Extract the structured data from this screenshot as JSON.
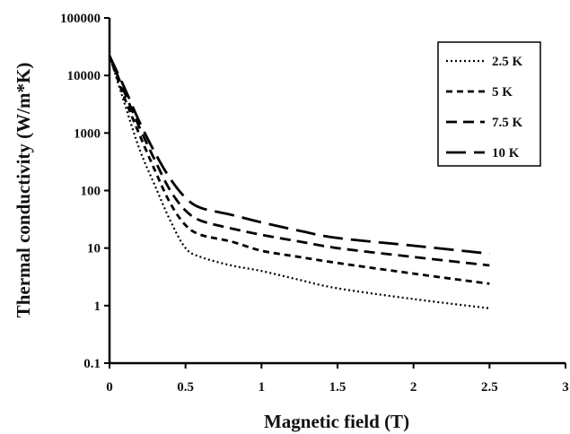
{
  "chart_data": {
    "type": "line",
    "title": "",
    "xlabel": "Magnetic field (T)",
    "ylabel": "Thermal conductivity (W/m*K)",
    "xlim": [
      0,
      3
    ],
    "ylim": [
      0.1,
      100000
    ],
    "yscale": "log",
    "grid": false,
    "legend_position": "top-right",
    "x_ticks": [
      "0",
      "0.5",
      "1",
      "1.5",
      "2",
      "2.5",
      "3"
    ],
    "y_ticks": [
      "0.1",
      "1",
      "10",
      "100",
      "1000",
      "10000",
      "100000"
    ],
    "series": [
      {
        "name": "2.5 K",
        "style": "dotted",
        "x": [
          0,
          0.1,
          0.2,
          0.3,
          0.4,
          0.5,
          0.6,
          0.8,
          1.0,
          1.25,
          1.5,
          2.0,
          2.5
        ],
        "y": [
          22000,
          3200,
          500,
          120,
          30,
          10,
          7,
          5,
          4,
          2.8,
          2.0,
          1.3,
          0.9
        ]
      },
      {
        "name": "5 K",
        "style": "short-dash",
        "x": [
          0,
          0.1,
          0.2,
          0.3,
          0.4,
          0.5,
          0.6,
          0.8,
          1.0,
          1.25,
          1.5,
          2.0,
          2.5
        ],
        "y": [
          22000,
          4000,
          900,
          220,
          60,
          25,
          17,
          13,
          9,
          7,
          5.5,
          3.6,
          2.4
        ]
      },
      {
        "name": "7.5 K",
        "style": "dash",
        "x": [
          0,
          0.1,
          0.2,
          0.3,
          0.4,
          0.5,
          0.6,
          0.8,
          1.0,
          1.25,
          1.5,
          2.0,
          2.5
        ],
        "y": [
          22000,
          5000,
          1200,
          330,
          100,
          45,
          30,
          22,
          17,
          13,
          10,
          7,
          5
        ]
      },
      {
        "name": "10 K",
        "style": "long-dash",
        "x": [
          0,
          0.1,
          0.2,
          0.3,
          0.4,
          0.5,
          0.6,
          0.8,
          1.0,
          1.25,
          1.5,
          2.0,
          2.5
        ],
        "y": [
          22000,
          6000,
          1500,
          450,
          160,
          75,
          50,
          38,
          28,
          20,
          15,
          11,
          8
        ]
      }
    ]
  }
}
